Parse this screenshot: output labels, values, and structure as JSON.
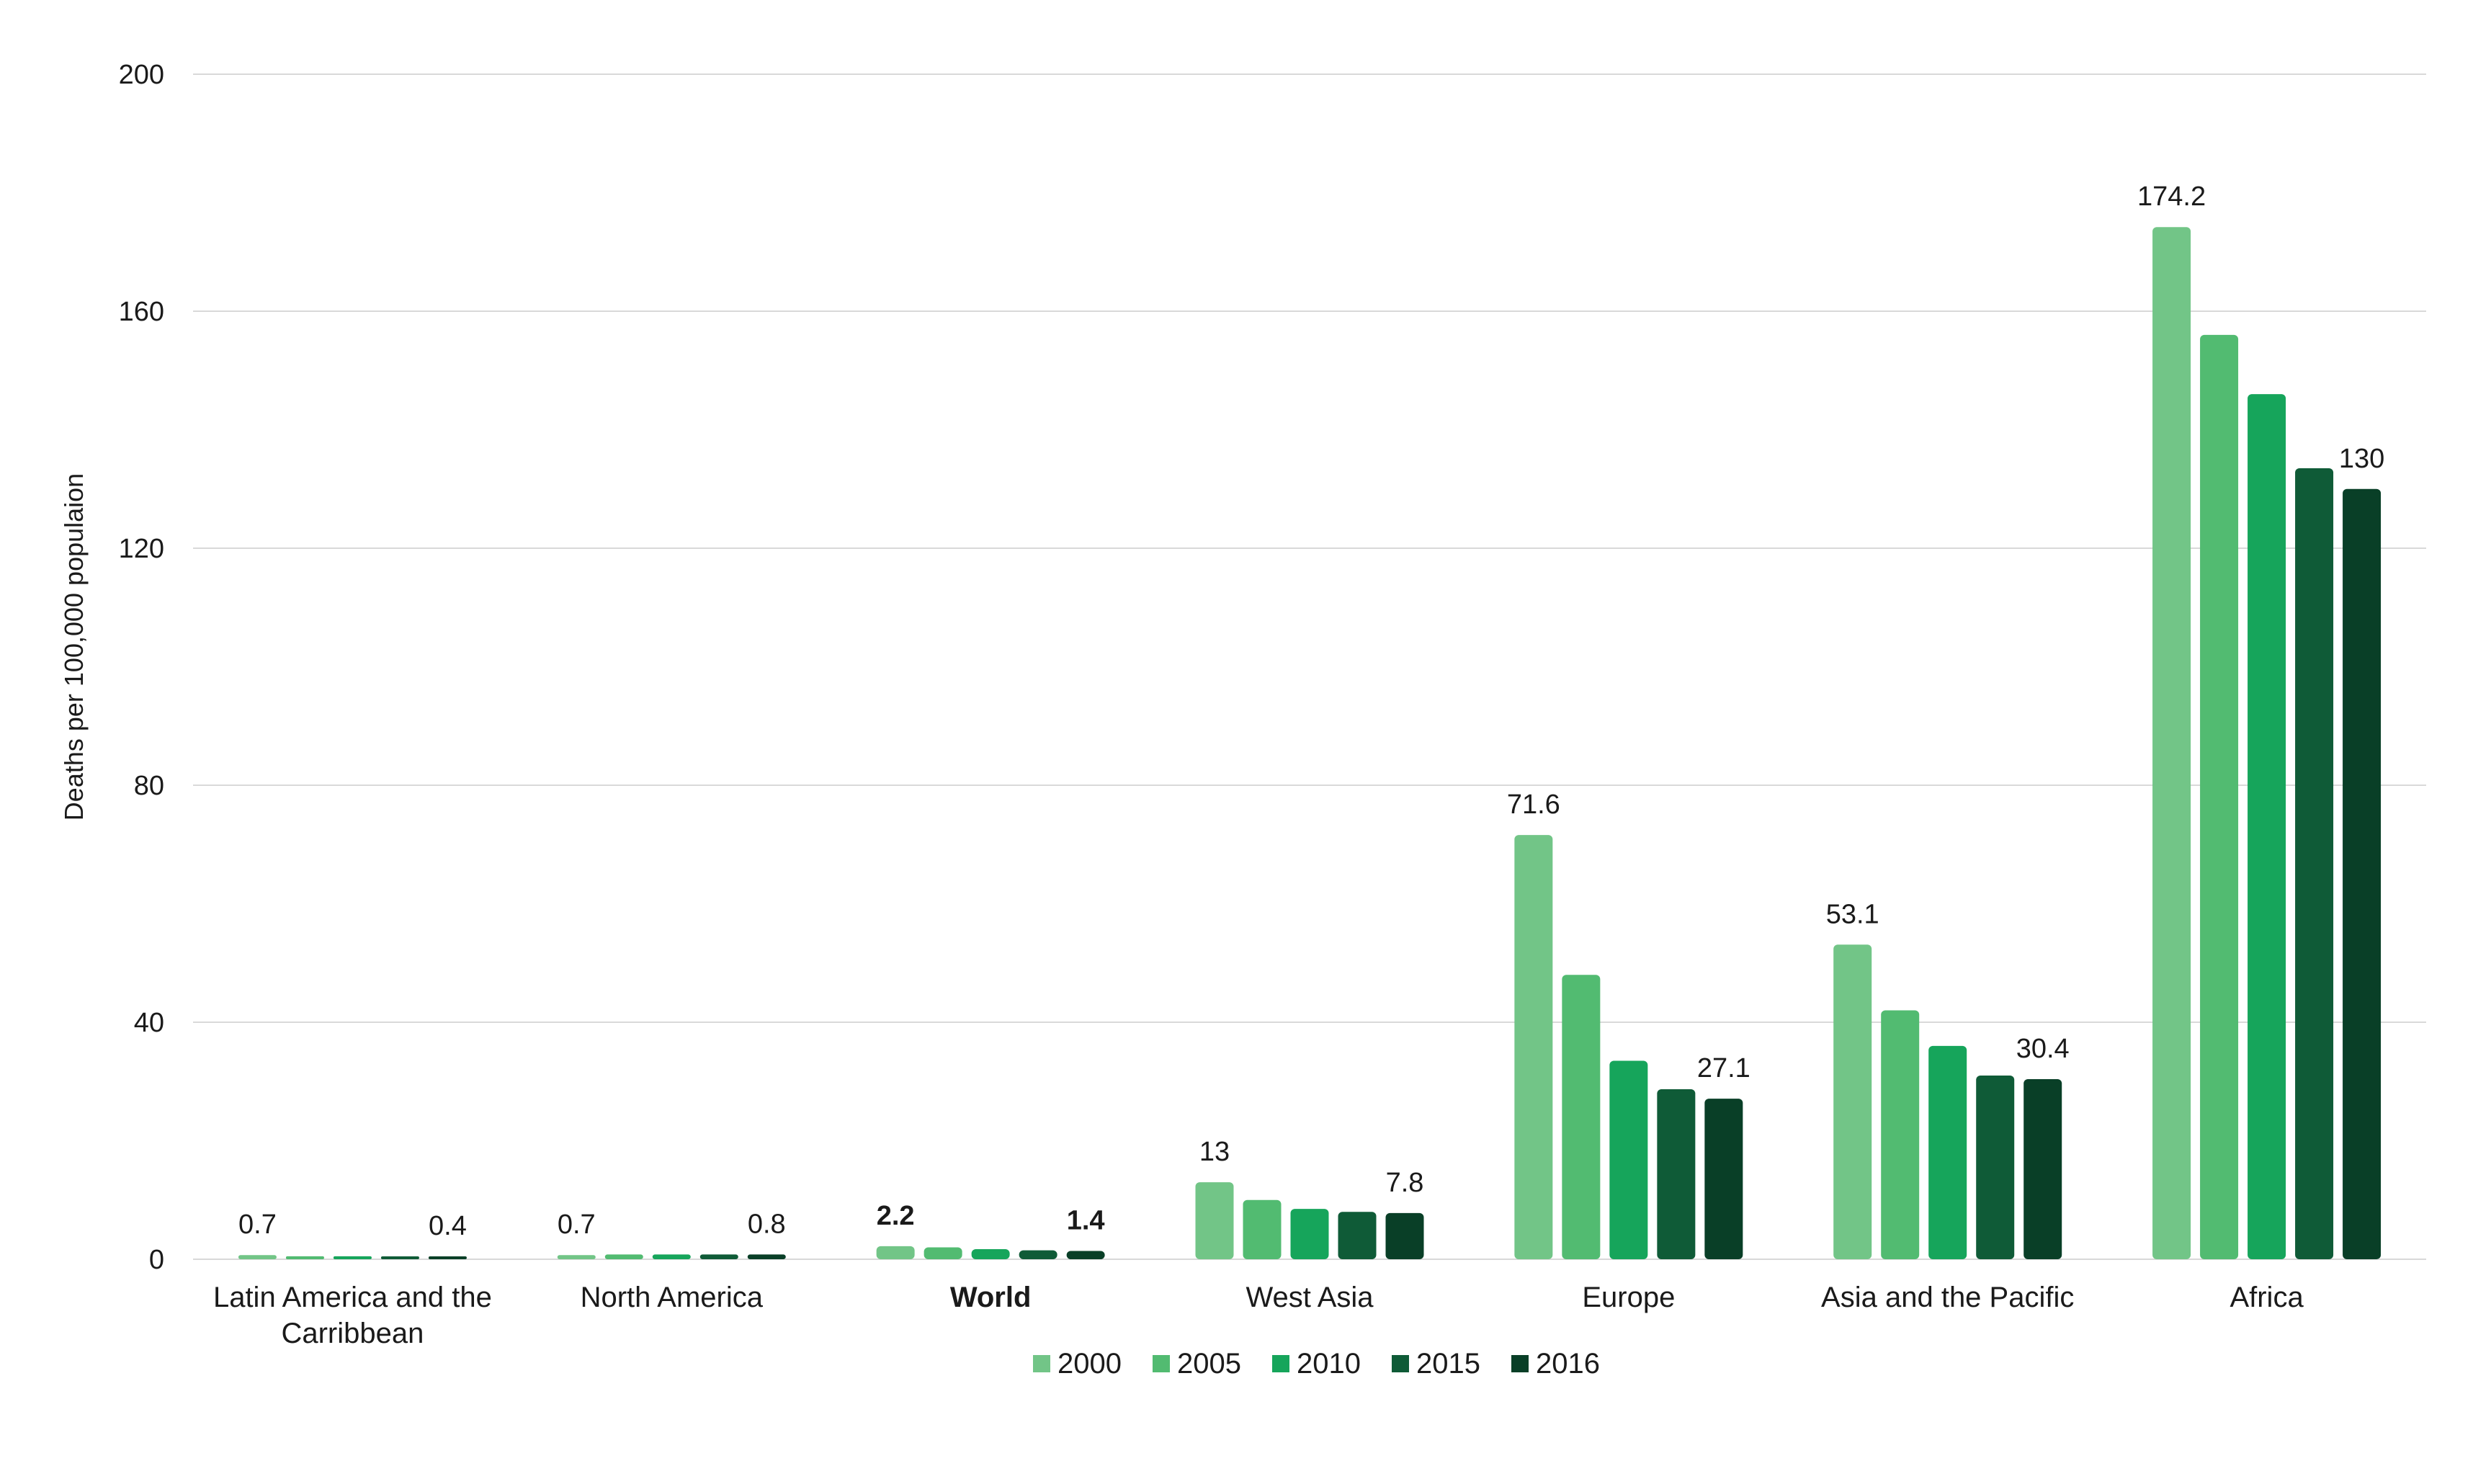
{
  "chart_data": {
    "type": "bar",
    "title": "",
    "xlabel": "",
    "ylabel": "Deaths per 100,000  populaion",
    "ylim": [
      0,
      200
    ],
    "yticks": [
      0,
      40,
      80,
      120,
      160,
      200
    ],
    "grid": true,
    "legend_position": "bottom",
    "categories": [
      [
        "Latin America and the",
        "Carribbean"
      ],
      [
        "North America"
      ],
      [
        "World"
      ],
      [
        "West Asia"
      ],
      [
        "Europe"
      ],
      [
        "Asia and the Pacific"
      ],
      [
        "Africa"
      ]
    ],
    "bold_categories": [
      2
    ],
    "series": [
      {
        "name": "2000",
        "color": "#72c587",
        "values": [
          0.7,
          0.7,
          2.2,
          13,
          71.6,
          53.1,
          174.2
        ]
      },
      {
        "name": "2005",
        "color": "#52bb71",
        "values": [
          0.5,
          0.8,
          2.0,
          10,
          48,
          42,
          156
        ]
      },
      {
        "name": "2010",
        "color": "#16a55b",
        "values": [
          0.5,
          0.8,
          1.7,
          8.5,
          33.5,
          36,
          146
        ]
      },
      {
        "name": "2015",
        "color": "#0f5b37",
        "values": [
          0.4,
          0.8,
          1.5,
          8,
          28.7,
          31,
          133.5
        ]
      },
      {
        "name": "2016",
        "color": "#093f27",
        "values": [
          0.4,
          0.8,
          1.4,
          7.8,
          27.1,
          30.4,
          130
        ]
      }
    ],
    "data_labels": [
      {
        "category": 0,
        "series": 0,
        "text": "0.7",
        "bold": false
      },
      {
        "category": 0,
        "series": 4,
        "text": "0.4",
        "bold": false
      },
      {
        "category": 1,
        "series": 0,
        "text": "0.7",
        "bold": false
      },
      {
        "category": 1,
        "series": 4,
        "text": "0.8",
        "bold": false
      },
      {
        "category": 2,
        "series": 0,
        "text": "2.2",
        "bold": true
      },
      {
        "category": 2,
        "series": 4,
        "text": "1.4",
        "bold": true
      },
      {
        "category": 3,
        "series": 0,
        "text": "13",
        "bold": false
      },
      {
        "category": 3,
        "series": 4,
        "text": "7.8",
        "bold": false
      },
      {
        "category": 4,
        "series": 0,
        "text": "71.6",
        "bold": false
      },
      {
        "category": 4,
        "series": 4,
        "text": "27.1",
        "bold": false
      },
      {
        "category": 5,
        "series": 0,
        "text": "53.1",
        "bold": false
      },
      {
        "category": 5,
        "series": 4,
        "text": "30.4",
        "bold": false
      },
      {
        "category": 6,
        "series": 0,
        "text": "174.2",
        "bold": false
      },
      {
        "category": 6,
        "series": 4,
        "text": "130",
        "bold": false
      }
    ]
  }
}
